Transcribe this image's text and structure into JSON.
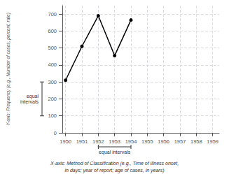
{
  "chart_data": {
    "type": "line",
    "ylabel": "Y-axis: Frequency (e.g., Number of cases, percent, rate)",
    "xlabel": "X-axis: Method of Classification (e.g., Time of illness onset,\nin days; year of report; age of cases, in years)",
    "x": [
      1950,
      1951,
      1952,
      1953,
      1954
    ],
    "values": [
      310,
      510,
      690,
      455,
      665
    ],
    "color": "#000000",
    "marker": "circle",
    "xlim": [
      1949.8,
      1959.4
    ],
    "xticks": [
      1950,
      1951,
      1952,
      1953,
      1954,
      1955,
      1956,
      1957,
      1958,
      1959
    ],
    "ylim": [
      0,
      750
    ],
    "yticks": [
      0,
      100,
      200,
      300,
      400,
      500,
      600,
      700
    ],
    "grid": true,
    "annotations": [
      {
        "text": "equal intervals",
        "x": [
          1952,
          1954
        ]
      },
      {
        "text": "equal\nintervals",
        "y": [
          100,
          300
        ]
      }
    ]
  }
}
